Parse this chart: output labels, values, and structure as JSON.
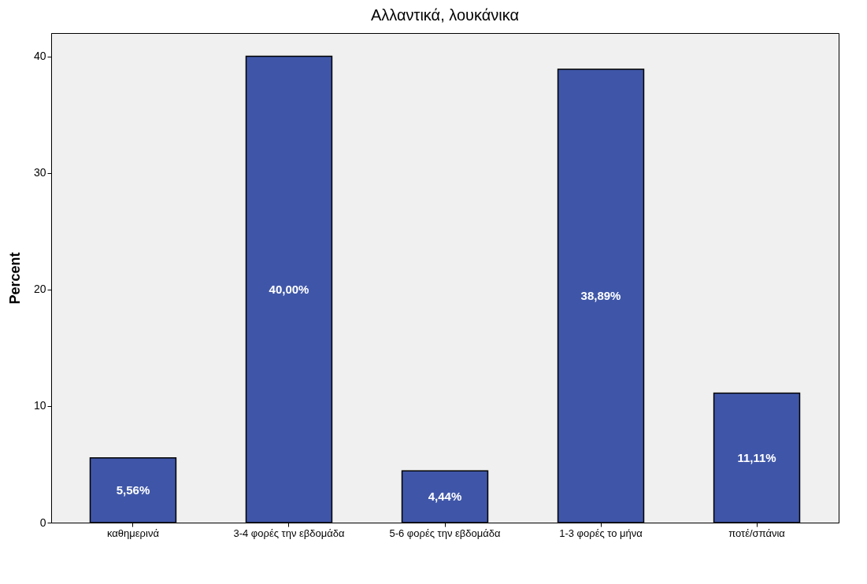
{
  "chart_data": {
    "type": "bar",
    "title": "Αλλαντικά, λουκάνικα",
    "ylabel": "Percent",
    "categories": [
      "καθημερινά",
      "3-4 φορές την εβδομάδα",
      "5-6 φορές την εβδομάδα",
      "1-3 φορές το μήνα",
      "ποτέ/σπάνια"
    ],
    "values": [
      5.56,
      40.0,
      4.44,
      38.89,
      11.11
    ],
    "value_labels": [
      "5,56%",
      "40,00%",
      "4,44%",
      "38,89%",
      "11,11%"
    ],
    "color": "#3f56a8",
    "ylim": [
      0,
      42
    ],
    "yticks": [
      0,
      10,
      20,
      30,
      40
    ],
    "grid": false
  }
}
